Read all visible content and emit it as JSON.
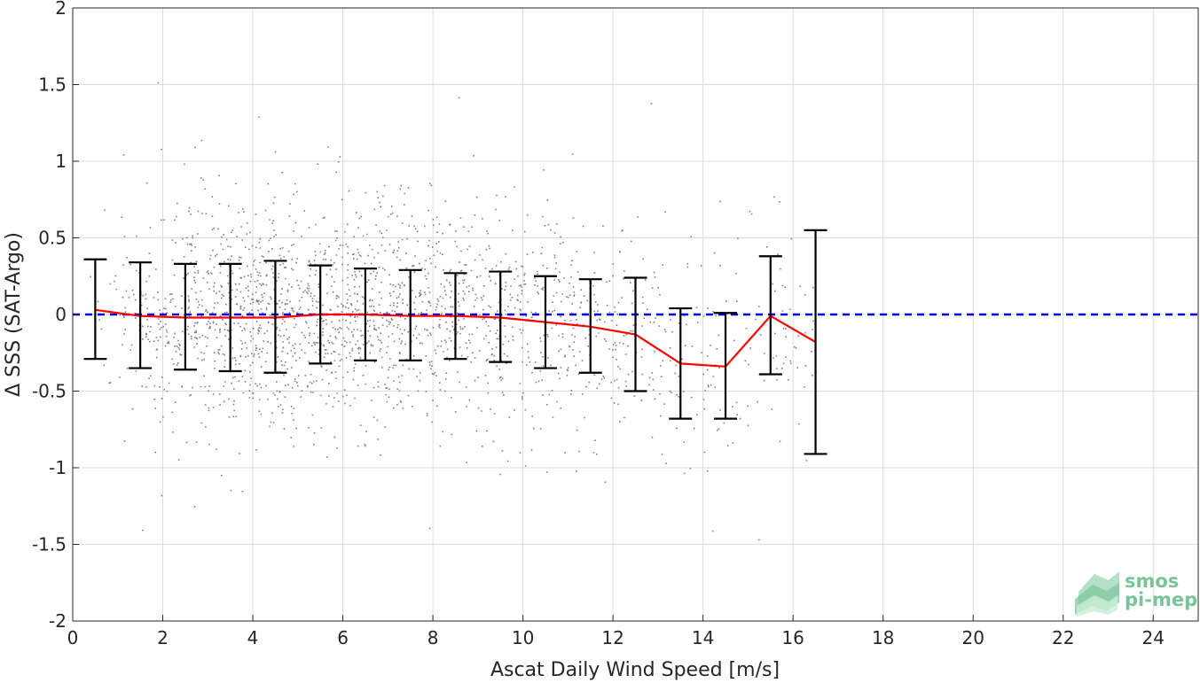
{
  "chart_data": {
    "type": "scatter",
    "xlabel": "Ascat Daily Wind Speed [m/s]",
    "ylabel": "Δ SSS (SAT-Argo)",
    "xlim": [
      0,
      25
    ],
    "ylim": [
      -2,
      2
    ],
    "xticks": [
      0,
      2,
      4,
      6,
      8,
      10,
      12,
      14,
      16,
      18,
      20,
      22,
      24
    ],
    "xtick_labels": [
      "0",
      "2",
      "4",
      "6",
      "8",
      "10",
      "12",
      "14",
      "16",
      "18",
      "20",
      "22",
      "24"
    ],
    "yticks": [
      -2,
      -1.5,
      -1,
      -0.5,
      0,
      0.5,
      1,
      1.5,
      2
    ],
    "ytick_labels": [
      "-2",
      "-1.5",
      "-1",
      "-0.5",
      "0",
      "0.5",
      "1",
      "1.5",
      "2"
    ],
    "grid": true,
    "reference_line": {
      "y": 0,
      "style": "dashed",
      "color": "#0000dd"
    },
    "scatter_color": "#808080",
    "mean_line_color": "#ff0000",
    "errorbar_color": "#000000",
    "bins": [
      {
        "x": 0.5,
        "mean": 0.03,
        "lower": -0.29,
        "upper": 0.36
      },
      {
        "x": 1.5,
        "mean": -0.01,
        "lower": -0.35,
        "upper": 0.34
      },
      {
        "x": 2.5,
        "mean": -0.02,
        "lower": -0.36,
        "upper": 0.33
      },
      {
        "x": 3.5,
        "mean": -0.02,
        "lower": -0.37,
        "upper": 0.33
      },
      {
        "x": 4.5,
        "mean": -0.02,
        "lower": -0.38,
        "upper": 0.35
      },
      {
        "x": 5.5,
        "mean": 0.0,
        "lower": -0.32,
        "upper": 0.32
      },
      {
        "x": 6.5,
        "mean": 0.0,
        "lower": -0.3,
        "upper": 0.3
      },
      {
        "x": 7.5,
        "mean": -0.01,
        "lower": -0.3,
        "upper": 0.29
      },
      {
        "x": 8.5,
        "mean": -0.01,
        "lower": -0.29,
        "upper": 0.27
      },
      {
        "x": 9.5,
        "mean": -0.02,
        "lower": -0.31,
        "upper": 0.28
      },
      {
        "x": 10.5,
        "mean": -0.05,
        "lower": -0.35,
        "upper": 0.25
      },
      {
        "x": 11.5,
        "mean": -0.08,
        "lower": -0.38,
        "upper": 0.23
      },
      {
        "x": 12.5,
        "mean": -0.13,
        "lower": -0.5,
        "upper": 0.24
      },
      {
        "x": 13.5,
        "mean": -0.32,
        "lower": -0.68,
        "upper": 0.04
      },
      {
        "x": 14.5,
        "mean": -0.34,
        "lower": -0.68,
        "upper": 0.01
      },
      {
        "x": 15.5,
        "mean": -0.01,
        "lower": -0.39,
        "upper": 0.38
      },
      {
        "x": 16.5,
        "mean": -0.18,
        "lower": -0.91,
        "upper": 0.55
      }
    ],
    "scatter_distribution": {
      "x_min": 0.05,
      "x_max": 16.5,
      "x_mode": 5.0,
      "y_std": 0.33,
      "n_points": 22000
    }
  },
  "logo": {
    "line1": "smos",
    "line2": "pi-mep"
  }
}
